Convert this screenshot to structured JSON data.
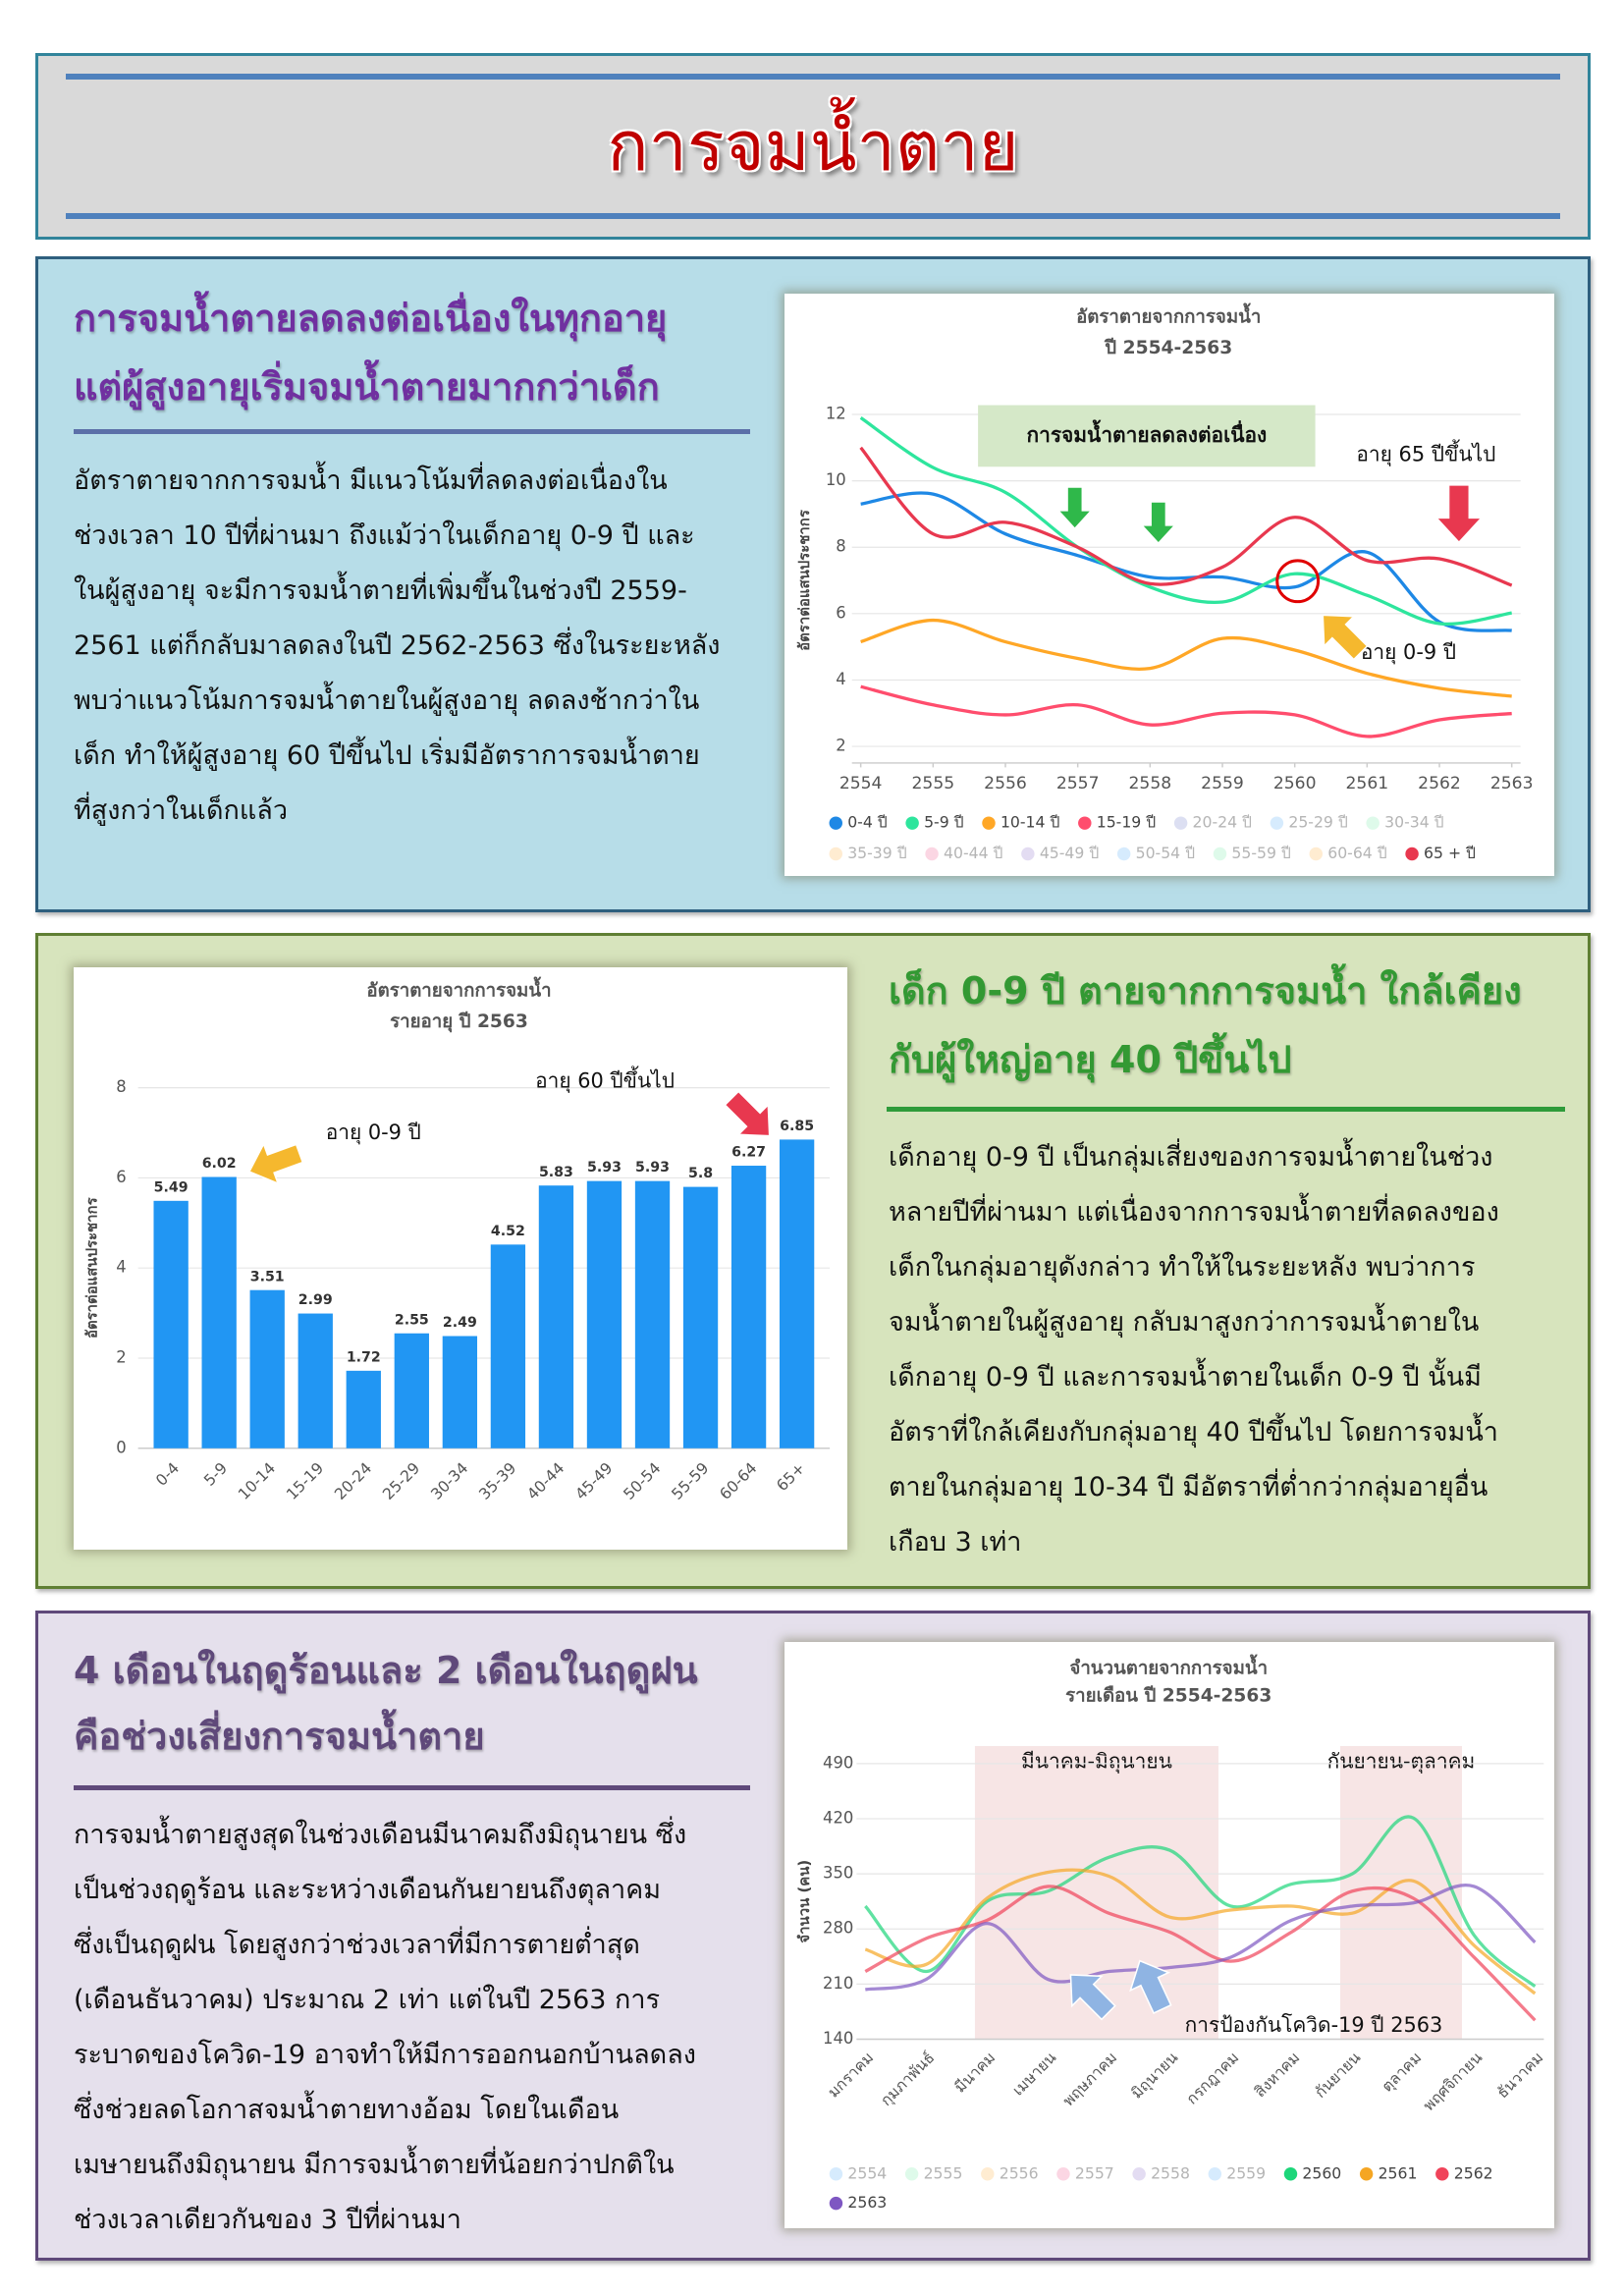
{
  "title": "การจมน้ำตาย",
  "sections": [
    {
      "heading": [
        "การจมน้ำตายลดลงต่อเนื่องในทุกอายุ",
        "แต่ผู้สูงอายุเริ่มจมน้ำตายมากกว่าเด็ก"
      ],
      "paragraph": [
        "อัตราตายจากการจมน้ำ มีแนวโน้มที่ลดลงต่อเนื่องใน",
        "ช่วงเวลา 10 ปีที่ผ่านมา ถึงแม้ว่าในเด็กอายุ 0-9 ปี และ",
        "ในผู้สูงอายุ จะมีการจมน้ำตายที่เพิ่มขึ้นในช่วงปี 2559-",
        "2561 แต่ก็กลับมาลดลงในปี 2562-2563 ซึ่งในระยะหลัง",
        "พบว่าแนวโน้มการจมน้ำตายในผู้สูงอายุ ลดลงช้ากว่าใน",
        "เด็ก ทำให้ผู้สูงอายุ 60 ปีขึ้นไป เริ่มมีอัตราการจมน้ำตาย",
        "ที่สูงกว่าในเด็กแล้ว"
      ]
    },
    {
      "heading": [
        "เด็ก 0-9 ปี ตายจากการจมน้ำ ใกล้เคียง",
        "กับผู้ใหญ่อายุ 40 ปีขึ้นไป"
      ],
      "paragraph": [
        "เด็กอายุ 0-9 ปี เป็นกลุ่มเสี่ยงของการจมน้ำตายในช่วง",
        "หลายปีที่ผ่านมา แต่เนื่องจากการจมน้ำตายที่ลดลงของ",
        "เด็กในกลุ่มอายุดังกล่าว ทำให้ในระยะหลัง พบว่าการ",
        "จมน้ำตายในผู้สูงอายุ กลับมาสูงกว่าการจมน้ำตายใน",
        "เด็กอายุ 0-9 ปี และการจมน้ำตายในเด็ก 0-9 ปี นั้นมี",
        "อัตราที่ใกล้เคียงกับกลุ่มอายุ 40 ปีขึ้นไป โดยการจมน้ำ",
        "ตายในกลุ่มอายุ 10-34 ปี มีอัตราที่ต่ำกว่ากลุ่มอายุอื่น",
        "เกือบ 3 เท่า"
      ]
    },
    {
      "heading": [
        "4 เดือนในฤดูร้อนและ 2 เดือนในฤดูฝน",
        "คือช่วงเสี่ยงการจมน้ำตาย"
      ],
      "paragraph": [
        "การจมน้ำตายสูงสุดในช่วงเดือนมีนาคมถึงมิถุนายน ซึ่ง",
        "เป็นช่วงฤดูร้อน และระหว่างเดือนกันยายนถึงตุลาคม",
        "ซึ่งเป็นฤดูฝน โดยสูงกว่าช่วงเวลาที่มีการตายต่ำสุด",
        "(เดือนธันวาคม) ประมาณ 2 เท่า แต่ในปี 2563 การ",
        "ระบาดของโควิด-19 อาจทำให้มีการออกนอกบ้านลดลง",
        "ซึ่งช่วยลดโอกาสจมน้ำตายทางอ้อม โดยในเดือน",
        "เมษายนถึงมิถุนายน มีการจมน้ำตายที่น้อยกว่าปกติใน",
        "ช่วงเวลาเดียวกันของ  3 ปีที่ผ่านมา"
      ]
    }
  ],
  "chart_data": [
    {
      "type": "line",
      "title": "อัตราตายจากการจมน้ำ",
      "subtitle": "ปี 2554-2563",
      "y_label": "อัตราต่อแสนประชากร",
      "x": [
        2554,
        2555,
        2556,
        2557,
        2558,
        2559,
        2560,
        2561,
        2562,
        2563
      ],
      "xlim": [
        2554,
        2563
      ],
      "xticks": [
        2554,
        2555,
        2556,
        2557,
        2558,
        2559,
        2560,
        2561,
        2562,
        2563
      ],
      "ylim": [
        1.5,
        12.5
      ],
      "yticks": [
        2,
        4,
        6,
        8,
        10,
        12
      ],
      "grid": true,
      "series": [
        {
          "name": "0-4 ปี",
          "color": "#1e88e5",
          "values": [
            9.3,
            9.6,
            8.4,
            7.75,
            7.1,
            7.1,
            6.8,
            7.85,
            5.75,
            5.49
          ]
        },
        {
          "name": "5-9 ปี",
          "color": "#2ee59d",
          "values": [
            11.9,
            10.4,
            9.65,
            8.0,
            6.8,
            6.35,
            7.2,
            6.55,
            5.7,
            6.02
          ]
        },
        {
          "name": "10-14 ปี",
          "color": "#ffa726",
          "values": [
            5.15,
            5.8,
            5.15,
            4.65,
            4.35,
            5.25,
            4.9,
            4.2,
            3.75,
            3.51
          ]
        },
        {
          "name": "15-19 ปี",
          "color": "#ff4d6d",
          "values": [
            3.8,
            3.25,
            2.95,
            3.25,
            2.65,
            3.0,
            2.95,
            2.3,
            2.8,
            2.99
          ]
        },
        {
          "name": "20-24 ปี",
          "color": "#c5cae9",
          "hidden": true
        },
        {
          "name": "25-29 ปี",
          "color": "#bbdefb",
          "hidden": true
        },
        {
          "name": "30-34 ปี",
          "color": "#c8f7dc",
          "hidden": true
        },
        {
          "name": "35-39 ปี",
          "color": "#ffe0b2",
          "hidden": true
        },
        {
          "name": "40-44 ปี",
          "color": "#f8bbd0",
          "hidden": true
        },
        {
          "name": "45-49 ปี",
          "color": "#d1c4e9",
          "hidden": true
        },
        {
          "name": "50-54 ปี",
          "color": "#bbdefb",
          "hidden": true
        },
        {
          "name": "55-59 ปี",
          "color": "#c8f7dc",
          "hidden": true
        },
        {
          "name": "60-64 ปี",
          "color": "#ffe0b2",
          "hidden": true
        },
        {
          "name": "65 + ปี",
          "color": "#e8384f",
          "values": [
            11.0,
            8.4,
            8.75,
            8.0,
            6.9,
            7.4,
            8.9,
            7.6,
            7.65,
            6.85
          ]
        }
      ],
      "annotations": [
        "การจมน้ำตายลดลงต่อเนื่อง",
        "อายุ 65 ปีขึ้นไป",
        "อายุ 0-9 ปี"
      ]
    },
    {
      "type": "bar",
      "title": "อัตราตายจากการจมน้ำ",
      "subtitle": "รายอายุ ปี 2563",
      "y_label": "อัตราต่อแสนประชากร",
      "categories": [
        "0-4",
        "5-9",
        "10-14",
        "15-19",
        "20-24",
        "25-29",
        "30-34",
        "35-39",
        "40-44",
        "45-49",
        "50-54",
        "55-59",
        "60-64",
        "65+"
      ],
      "values": [
        5.49,
        6.02,
        3.51,
        2.99,
        1.72,
        2.55,
        2.49,
        4.52,
        5.83,
        5.93,
        5.93,
        5.8,
        6.27,
        6.85
      ],
      "color": "#2196f3",
      "ylim": [
        0,
        8
      ],
      "yticks": [
        0,
        2,
        4,
        6,
        8
      ],
      "grid": true,
      "annotations": [
        "อายุ 0-9 ปี",
        "อายุ 60 ปีขึ้นไป"
      ]
    },
    {
      "type": "line",
      "title": "จำนวนตายจากการจมน้ำ",
      "subtitle": "รายเดือน ปี 2554-2563",
      "y_label": "จำนวน (คน)",
      "categories": [
        "มกราคม",
        "กุมภาพันธ์",
        "มีนาคม",
        "เมษายน",
        "พฤษภาคม",
        "มิถุนายน",
        "กรกฎาคม",
        "สิงหาคม",
        "กันยายน",
        "ตุลาคม",
        "พฤศจิกายน",
        "ธันวาคม"
      ],
      "ylim": [
        140,
        490
      ],
      "yticks": [
        140,
        210,
        280,
        350,
        420,
        490
      ],
      "grid": true,
      "series": [
        {
          "name": "2554",
          "color": "#bbdefb",
          "hidden": true
        },
        {
          "name": "2555",
          "color": "#c8f7dc",
          "hidden": true
        },
        {
          "name": "2556",
          "color": "#ffe0b2",
          "hidden": true
        },
        {
          "name": "2557",
          "color": "#f8bbd0",
          "hidden": true
        },
        {
          "name": "2558",
          "color": "#d1c4e9",
          "hidden": true
        },
        {
          "name": "2559",
          "color": "#bbdefb",
          "hidden": true
        },
        {
          "name": "2560",
          "color": "#1dd67a",
          "values": [
            309,
            226,
            315,
            328,
            371,
            380,
            309,
            337,
            350,
            421,
            272,
            207
          ]
        },
        {
          "name": "2561",
          "color": "#f5a623",
          "values": [
            254,
            235,
            319,
            352,
            347,
            295,
            304,
            309,
            300,
            341,
            259,
            198
          ]
        },
        {
          "name": "2562",
          "color": "#f0435a",
          "values": [
            226,
            268,
            291,
            334,
            300,
            276,
            239,
            276,
            328,
            319,
            244,
            164
          ]
        },
        {
          "name": "2563",
          "color": "#7e57c2",
          "values": [
            203,
            216,
            287,
            216,
            226,
            231,
            244,
            291,
            309,
            313,
            334,
            263
          ]
        }
      ],
      "highlights": [
        {
          "label": "มีนาคม-มิถุนายน",
          "from": "มีนาคม",
          "to": "มิถุนายน"
        },
        {
          "label": "กันยายน-ตุลาคม",
          "from": "กันยายน",
          "to": "ตุลาคม"
        }
      ],
      "annotations": [
        "การป้องกันโควิด-19 ปี 2563"
      ]
    }
  ]
}
